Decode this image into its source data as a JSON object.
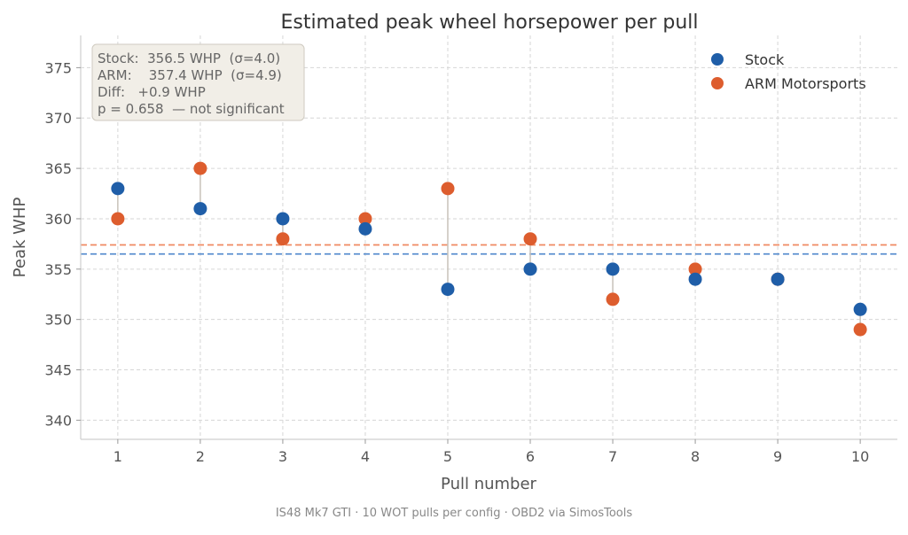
{
  "chart_data": {
    "type": "scatter",
    "title": "Estimated peak wheel horsepower per pull",
    "xlabel": "Pull number",
    "ylabel": "Peak WHP",
    "footer": "IS48 Mk7 GTI · 10 WOT pulls per config · OBD2 via SimosTools",
    "x": [
      1,
      2,
      3,
      4,
      5,
      6,
      7,
      8,
      9,
      10
    ],
    "xticks": [
      "1",
      "2",
      "3",
      "4",
      "5",
      "6",
      "7",
      "8",
      "9",
      "10"
    ],
    "yticks": [
      "340",
      "345",
      "350",
      "355",
      "360",
      "365",
      "370",
      "375"
    ],
    "xlim": [
      0.55,
      10.45
    ],
    "ylim": [
      338.1,
      378.2
    ],
    "grid": true,
    "legend_position": "top-right",
    "series": [
      {
        "name": "Stock",
        "color": "#1f5ea8",
        "mean": 356.5,
        "mean_color": "#5b8fd0",
        "values": [
          363,
          361,
          360,
          359,
          353,
          355,
          355,
          354,
          354,
          351
        ]
      },
      {
        "name": "ARM Motorsports",
        "color": "#dd5d2e",
        "mean": 357.4,
        "mean_color": "#ef8a62",
        "values": [
          360,
          365,
          358,
          360,
          363,
          358,
          352,
          355,
          354,
          349
        ]
      }
    ],
    "annotation": [
      "Stock:  356.5 WHP  (σ=4.0)",
      "ARM:    357.4 WHP  (σ=4.9)",
      "Diff:   +0.9 WHP",
      "p = 0.658  — not significant"
    ]
  }
}
